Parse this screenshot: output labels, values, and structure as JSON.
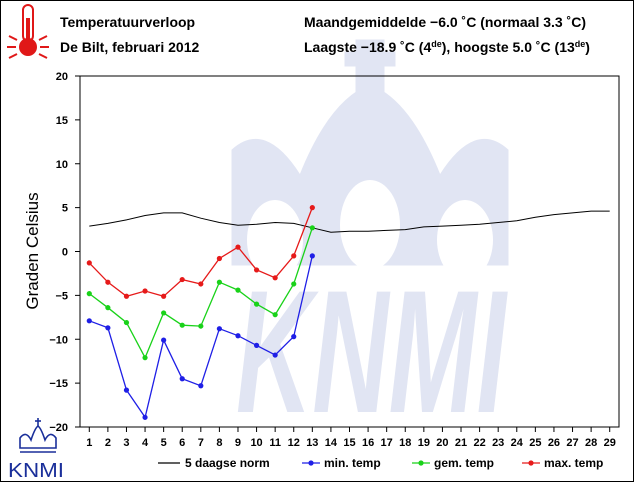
{
  "header": {
    "title": "Temperatuurverloop",
    "subtitle": "De Bilt, februari 2012",
    "monthly_avg": "Maandgemiddelde −6.0 ˚C (normaal 3.3 ˚C)",
    "extremes": {
      "prefix": "Laagste −18.9 ˚C (4",
      "sup1": "de",
      "middle": "), hoogste 5.0 ˚C (13",
      "sup2": "de",
      "suffix": ")"
    }
  },
  "logo": {
    "text": "KNMI",
    "watermark": "KNMI"
  },
  "colors": {
    "min": "#1f1fe6",
    "gem": "#19d219",
    "max": "#e61a1a",
    "norm": "#000000",
    "watermark": "#e1e5f3",
    "thermo": "#e01818",
    "logo": "#1a2f9a"
  },
  "chart_data": {
    "type": "line",
    "ylabel": "Graden Celsius",
    "ylim": [
      -20,
      20
    ],
    "yticks": [
      20,
      15,
      10,
      5,
      0,
      -5,
      -10,
      -15,
      -20
    ],
    "xlim": [
      0.5,
      29.5
    ],
    "xticks": [
      1,
      2,
      3,
      4,
      5,
      6,
      7,
      8,
      9,
      10,
      11,
      12,
      13,
      14,
      15,
      16,
      17,
      18,
      19,
      20,
      21,
      22,
      23,
      24,
      25,
      26,
      27,
      28,
      29
    ],
    "grid": false,
    "legend_position": "bottom",
    "series": [
      {
        "name": "5 daagse norm",
        "key": "norm",
        "markers": false,
        "x": [
          1,
          2,
          3,
          4,
          5,
          6,
          7,
          8,
          9,
          10,
          11,
          12,
          13,
          14,
          15,
          16,
          17,
          18,
          19,
          20,
          21,
          22,
          23,
          24,
          25,
          26,
          27,
          28,
          29
        ],
        "values": [
          2.9,
          3.2,
          3.6,
          4.1,
          4.4,
          4.4,
          3.8,
          3.3,
          3.0,
          3.1,
          3.3,
          3.2,
          2.7,
          2.2,
          2.3,
          2.3,
          2.4,
          2.5,
          2.8,
          2.9,
          3.0,
          3.1,
          3.3,
          3.5,
          3.9,
          4.2,
          4.4,
          4.6,
          4.6
        ]
      },
      {
        "name": "min. temp",
        "key": "min",
        "markers": true,
        "x": [
          1,
          2,
          3,
          4,
          5,
          6,
          7,
          8,
          9,
          10,
          11,
          12,
          13
        ],
        "values": [
          -7.9,
          -8.7,
          -15.8,
          -18.9,
          -10.1,
          -14.5,
          -15.3,
          -8.8,
          -9.6,
          -10.7,
          -11.8,
          -9.7,
          -0.5
        ]
      },
      {
        "name": "gem. temp",
        "key": "gem",
        "markers": true,
        "x": [
          1,
          2,
          3,
          4,
          5,
          6,
          7,
          8,
          9,
          10,
          11,
          12,
          13
        ],
        "values": [
          -4.8,
          -6.4,
          -8.1,
          -12.1,
          -7.0,
          -8.4,
          -8.5,
          -3.5,
          -4.4,
          -6.0,
          -7.2,
          -3.7,
          2.7
        ]
      },
      {
        "name": "max. temp",
        "key": "max",
        "markers": true,
        "x": [
          1,
          2,
          3,
          4,
          5,
          6,
          7,
          8,
          9,
          10,
          11,
          12,
          13
        ],
        "values": [
          -1.3,
          -3.5,
          -5.1,
          -4.5,
          -5.1,
          -3.2,
          -3.7,
          -0.8,
          0.5,
          -2.1,
          -3.0,
          -0.5,
          5.0
        ]
      }
    ]
  }
}
